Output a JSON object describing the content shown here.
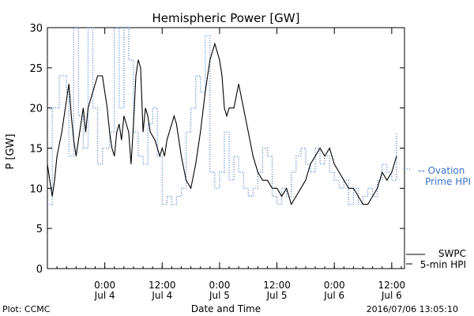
{
  "footer": {
    "plot_credit": "Plot: CCMC",
    "timestamp": "2016/07/06 13:05:10"
  },
  "legend": {
    "ovation_line1": "-- Ovation",
    "ovation_line2": "Prime HPI",
    "swpc_line1": "SWPC",
    "swpc_line2": "5-min HPI"
  },
  "colors": {
    "ovation": "#3a72c8",
    "swpc": "#000000",
    "axis": "#000000",
    "background": "#ffffff"
  },
  "chart_data": {
    "type": "line",
    "title": "Hemispheric Power [GW]",
    "xlabel": "Date and Time",
    "ylabel": "P [GW]",
    "ylim": [
      0,
      30
    ],
    "yticks": [
      0,
      5,
      10,
      15,
      20,
      25,
      30
    ],
    "xlim": [
      "2016-07-03 12:00",
      "2016-07-06 14:40"
    ],
    "xticks": [
      {
        "t": "2016-07-04 00:00",
        "label1": "0:00",
        "label2": "Jul 4"
      },
      {
        "t": "2016-07-04 12:00",
        "label1": "12:00",
        "label2": "Jul 4"
      },
      {
        "t": "2016-07-05 00:00",
        "label1": "0:00",
        "label2": "Jul 5"
      },
      {
        "t": "2016-07-05 12:00",
        "label1": "12:00",
        "label2": "Jul 5"
      },
      {
        "t": "2016-07-06 00:00",
        "label1": "0:00",
        "label2": "Jul 6"
      },
      {
        "t": "2016-07-06 12:00",
        "label1": "12:00",
        "label2": "Jul 6"
      }
    ],
    "grid": false,
    "legend_position": "right",
    "series": [
      {
        "name": "Ovation Prime HPI",
        "style": "dotted",
        "points": [
          [
            "2016-07-03 12:00",
            8
          ],
          [
            "2016-07-03 12:30",
            8
          ],
          [
            "2016-07-03 13:00",
            20
          ],
          [
            "2016-07-03 14:30",
            24
          ],
          [
            "2016-07-03 16:00",
            22
          ],
          [
            "2016-07-03 16:30",
            14
          ],
          [
            "2016-07-03 17:30",
            30
          ],
          [
            "2016-07-03 18:30",
            19
          ],
          [
            "2016-07-03 19:30",
            15
          ],
          [
            "2016-07-03 20:30",
            30
          ],
          [
            "2016-07-03 21:30",
            20
          ],
          [
            "2016-07-03 22:30",
            13
          ],
          [
            "2016-07-03 23:30",
            15
          ],
          [
            "2016-07-04 01:00",
            17
          ],
          [
            "2016-07-04 02:00",
            30
          ],
          [
            "2016-07-04 03:00",
            20
          ],
          [
            "2016-07-04 04:00",
            30
          ],
          [
            "2016-07-04 05:00",
            26
          ],
          [
            "2016-07-04 06:00",
            17
          ],
          [
            "2016-07-04 07:00",
            14
          ],
          [
            "2016-07-04 08:00",
            13
          ],
          [
            "2016-07-04 09:00",
            18
          ],
          [
            "2016-07-04 10:00",
            20
          ],
          [
            "2016-07-04 11:00",
            14
          ],
          [
            "2016-07-04 12:00",
            8
          ],
          [
            "2016-07-04 13:00",
            9
          ],
          [
            "2016-07-04 14:00",
            8
          ],
          [
            "2016-07-04 15:00",
            9
          ],
          [
            "2016-07-04 16:00",
            10
          ],
          [
            "2016-07-04 17:00",
            17
          ],
          [
            "2016-07-04 18:00",
            20
          ],
          [
            "2016-07-04 19:00",
            24
          ],
          [
            "2016-07-04 20:00",
            22
          ],
          [
            "2016-07-04 21:00",
            29
          ],
          [
            "2016-07-04 22:00",
            12
          ],
          [
            "2016-07-04 23:00",
            10
          ],
          [
            "2016-07-05 00:00",
            12
          ],
          [
            "2016-07-05 01:00",
            17
          ],
          [
            "2016-07-05 02:00",
            11
          ],
          [
            "2016-07-05 03:00",
            14
          ],
          [
            "2016-07-05 04:00",
            12
          ],
          [
            "2016-07-05 05:00",
            10
          ],
          [
            "2016-07-05 06:00",
            9
          ],
          [
            "2016-07-05 07:00",
            10
          ],
          [
            "2016-07-05 08:00",
            12
          ],
          [
            "2016-07-05 09:00",
            15
          ],
          [
            "2016-07-05 10:00",
            14
          ],
          [
            "2016-07-05 11:00",
            9
          ],
          [
            "2016-07-05 12:00",
            8
          ],
          [
            "2016-07-05 13:00",
            10
          ],
          [
            "2016-07-05 14:00",
            9
          ],
          [
            "2016-07-05 15:00",
            12
          ],
          [
            "2016-07-05 16:00",
            14
          ],
          [
            "2016-07-05 17:00",
            15
          ],
          [
            "2016-07-05 18:00",
            13
          ],
          [
            "2016-07-05 19:00",
            12
          ],
          [
            "2016-07-05 20:00",
            15
          ],
          [
            "2016-07-05 21:00",
            13
          ],
          [
            "2016-07-05 22:00",
            14
          ],
          [
            "2016-07-05 23:00",
            12
          ],
          [
            "2016-07-06 00:00",
            11
          ],
          [
            "2016-07-06 01:00",
            10
          ],
          [
            "2016-07-06 02:00",
            11
          ],
          [
            "2016-07-06 03:00",
            8
          ],
          [
            "2016-07-06 04:00",
            10
          ],
          [
            "2016-07-06 05:00",
            8
          ],
          [
            "2016-07-06 06:00",
            9
          ],
          [
            "2016-07-06 07:00",
            10
          ],
          [
            "2016-07-06 08:00",
            9
          ],
          [
            "2016-07-06 09:00",
            11
          ],
          [
            "2016-07-06 10:00",
            13
          ],
          [
            "2016-07-06 11:00",
            12
          ],
          [
            "2016-07-06 12:00",
            11
          ],
          [
            "2016-07-06 13:00",
            17
          ]
        ]
      },
      {
        "name": "SWPC 5-min HPI",
        "style": "solid",
        "points": [
          [
            "2016-07-03 12:00",
            13
          ],
          [
            "2016-07-03 12:30",
            11
          ],
          [
            "2016-07-03 13:00",
            9
          ],
          [
            "2016-07-03 13:30",
            11
          ],
          [
            "2016-07-03 14:00",
            14
          ],
          [
            "2016-07-03 15:00",
            17
          ],
          [
            "2016-07-03 16:00",
            21
          ],
          [
            "2016-07-03 16:30",
            23
          ],
          [
            "2016-07-03 17:00",
            19
          ],
          [
            "2016-07-03 17:30",
            16
          ],
          [
            "2016-07-03 18:00",
            14
          ],
          [
            "2016-07-03 18:30",
            16
          ],
          [
            "2016-07-03 19:00",
            18
          ],
          [
            "2016-07-03 19:30",
            20
          ],
          [
            "2016-07-03 20:00",
            17
          ],
          [
            "2016-07-03 20:30",
            20
          ],
          [
            "2016-07-03 21:30",
            22
          ],
          [
            "2016-07-03 22:30",
            24
          ],
          [
            "2016-07-03 23:30",
            24
          ],
          [
            "2016-07-04 00:30",
            20
          ],
          [
            "2016-07-04 01:00",
            17
          ],
          [
            "2016-07-04 01:30",
            15
          ],
          [
            "2016-07-04 02:00",
            14
          ],
          [
            "2016-07-04 02:30",
            17
          ],
          [
            "2016-07-04 03:00",
            18
          ],
          [
            "2016-07-04 03:30",
            16
          ],
          [
            "2016-07-04 04:00",
            19
          ],
          [
            "2016-07-04 04:30",
            18
          ],
          [
            "2016-07-04 05:00",
            17
          ],
          [
            "2016-07-04 05:30",
            13
          ],
          [
            "2016-07-04 06:00",
            18
          ],
          [
            "2016-07-04 06:30",
            24
          ],
          [
            "2016-07-04 07:00",
            26
          ],
          [
            "2016-07-04 07:30",
            25
          ],
          [
            "2016-07-04 08:00",
            17
          ],
          [
            "2016-07-04 08:30",
            20
          ],
          [
            "2016-07-04 09:00",
            19
          ],
          [
            "2016-07-04 09:30",
            17
          ],
          [
            "2016-07-04 10:30",
            16
          ],
          [
            "2016-07-04 11:30",
            14
          ],
          [
            "2016-07-04 12:00",
            15
          ],
          [
            "2016-07-04 12:30",
            14
          ],
          [
            "2016-07-04 13:00",
            16
          ],
          [
            "2016-07-04 14:00",
            18
          ],
          [
            "2016-07-04 14:30",
            19
          ],
          [
            "2016-07-04 15:00",
            18
          ],
          [
            "2016-07-04 16:00",
            14
          ],
          [
            "2016-07-04 17:00",
            11
          ],
          [
            "2016-07-04 18:00",
            10
          ],
          [
            "2016-07-04 19:00",
            13
          ],
          [
            "2016-07-04 20:00",
            17
          ],
          [
            "2016-07-04 21:00",
            22
          ],
          [
            "2016-07-04 22:00",
            26
          ],
          [
            "2016-07-04 23:00",
            28
          ],
          [
            "2016-07-05 00:00",
            26
          ],
          [
            "2016-07-05 00:30",
            24
          ],
          [
            "2016-07-05 01:00",
            20
          ],
          [
            "2016-07-05 01:30",
            19
          ],
          [
            "2016-07-05 02:00",
            20
          ],
          [
            "2016-07-05 03:00",
            20
          ],
          [
            "2016-07-05 04:00",
            23
          ],
          [
            "2016-07-05 05:00",
            20
          ],
          [
            "2016-07-05 06:00",
            17
          ],
          [
            "2016-07-05 07:00",
            14
          ],
          [
            "2016-07-05 08:00",
            12
          ],
          [
            "2016-07-05 09:00",
            11
          ],
          [
            "2016-07-05 10:00",
            11
          ],
          [
            "2016-07-05 11:00",
            10
          ],
          [
            "2016-07-05 12:00",
            10
          ],
          [
            "2016-07-05 13:00",
            9
          ],
          [
            "2016-07-05 14:00",
            10
          ],
          [
            "2016-07-05 15:00",
            8
          ],
          [
            "2016-07-05 16:00",
            9
          ],
          [
            "2016-07-05 17:00",
            10
          ],
          [
            "2016-07-05 18:00",
            11
          ],
          [
            "2016-07-05 19:00",
            13
          ],
          [
            "2016-07-05 20:00",
            14
          ],
          [
            "2016-07-05 21:00",
            15
          ],
          [
            "2016-07-05 22:00",
            14
          ],
          [
            "2016-07-05 23:00",
            15
          ],
          [
            "2016-07-06 00:00",
            13
          ],
          [
            "2016-07-06 01:00",
            12
          ],
          [
            "2016-07-06 02:00",
            11
          ],
          [
            "2016-07-06 03:00",
            10
          ],
          [
            "2016-07-06 04:00",
            10
          ],
          [
            "2016-07-06 05:00",
            9
          ],
          [
            "2016-07-06 06:00",
            8
          ],
          [
            "2016-07-06 07:00",
            8
          ],
          [
            "2016-07-06 08:00",
            9
          ],
          [
            "2016-07-06 09:00",
            10
          ],
          [
            "2016-07-06 10:00",
            12
          ],
          [
            "2016-07-06 11:00",
            11
          ],
          [
            "2016-07-06 12:00",
            12
          ],
          [
            "2016-07-06 13:00",
            14
          ]
        ]
      }
    ]
  }
}
